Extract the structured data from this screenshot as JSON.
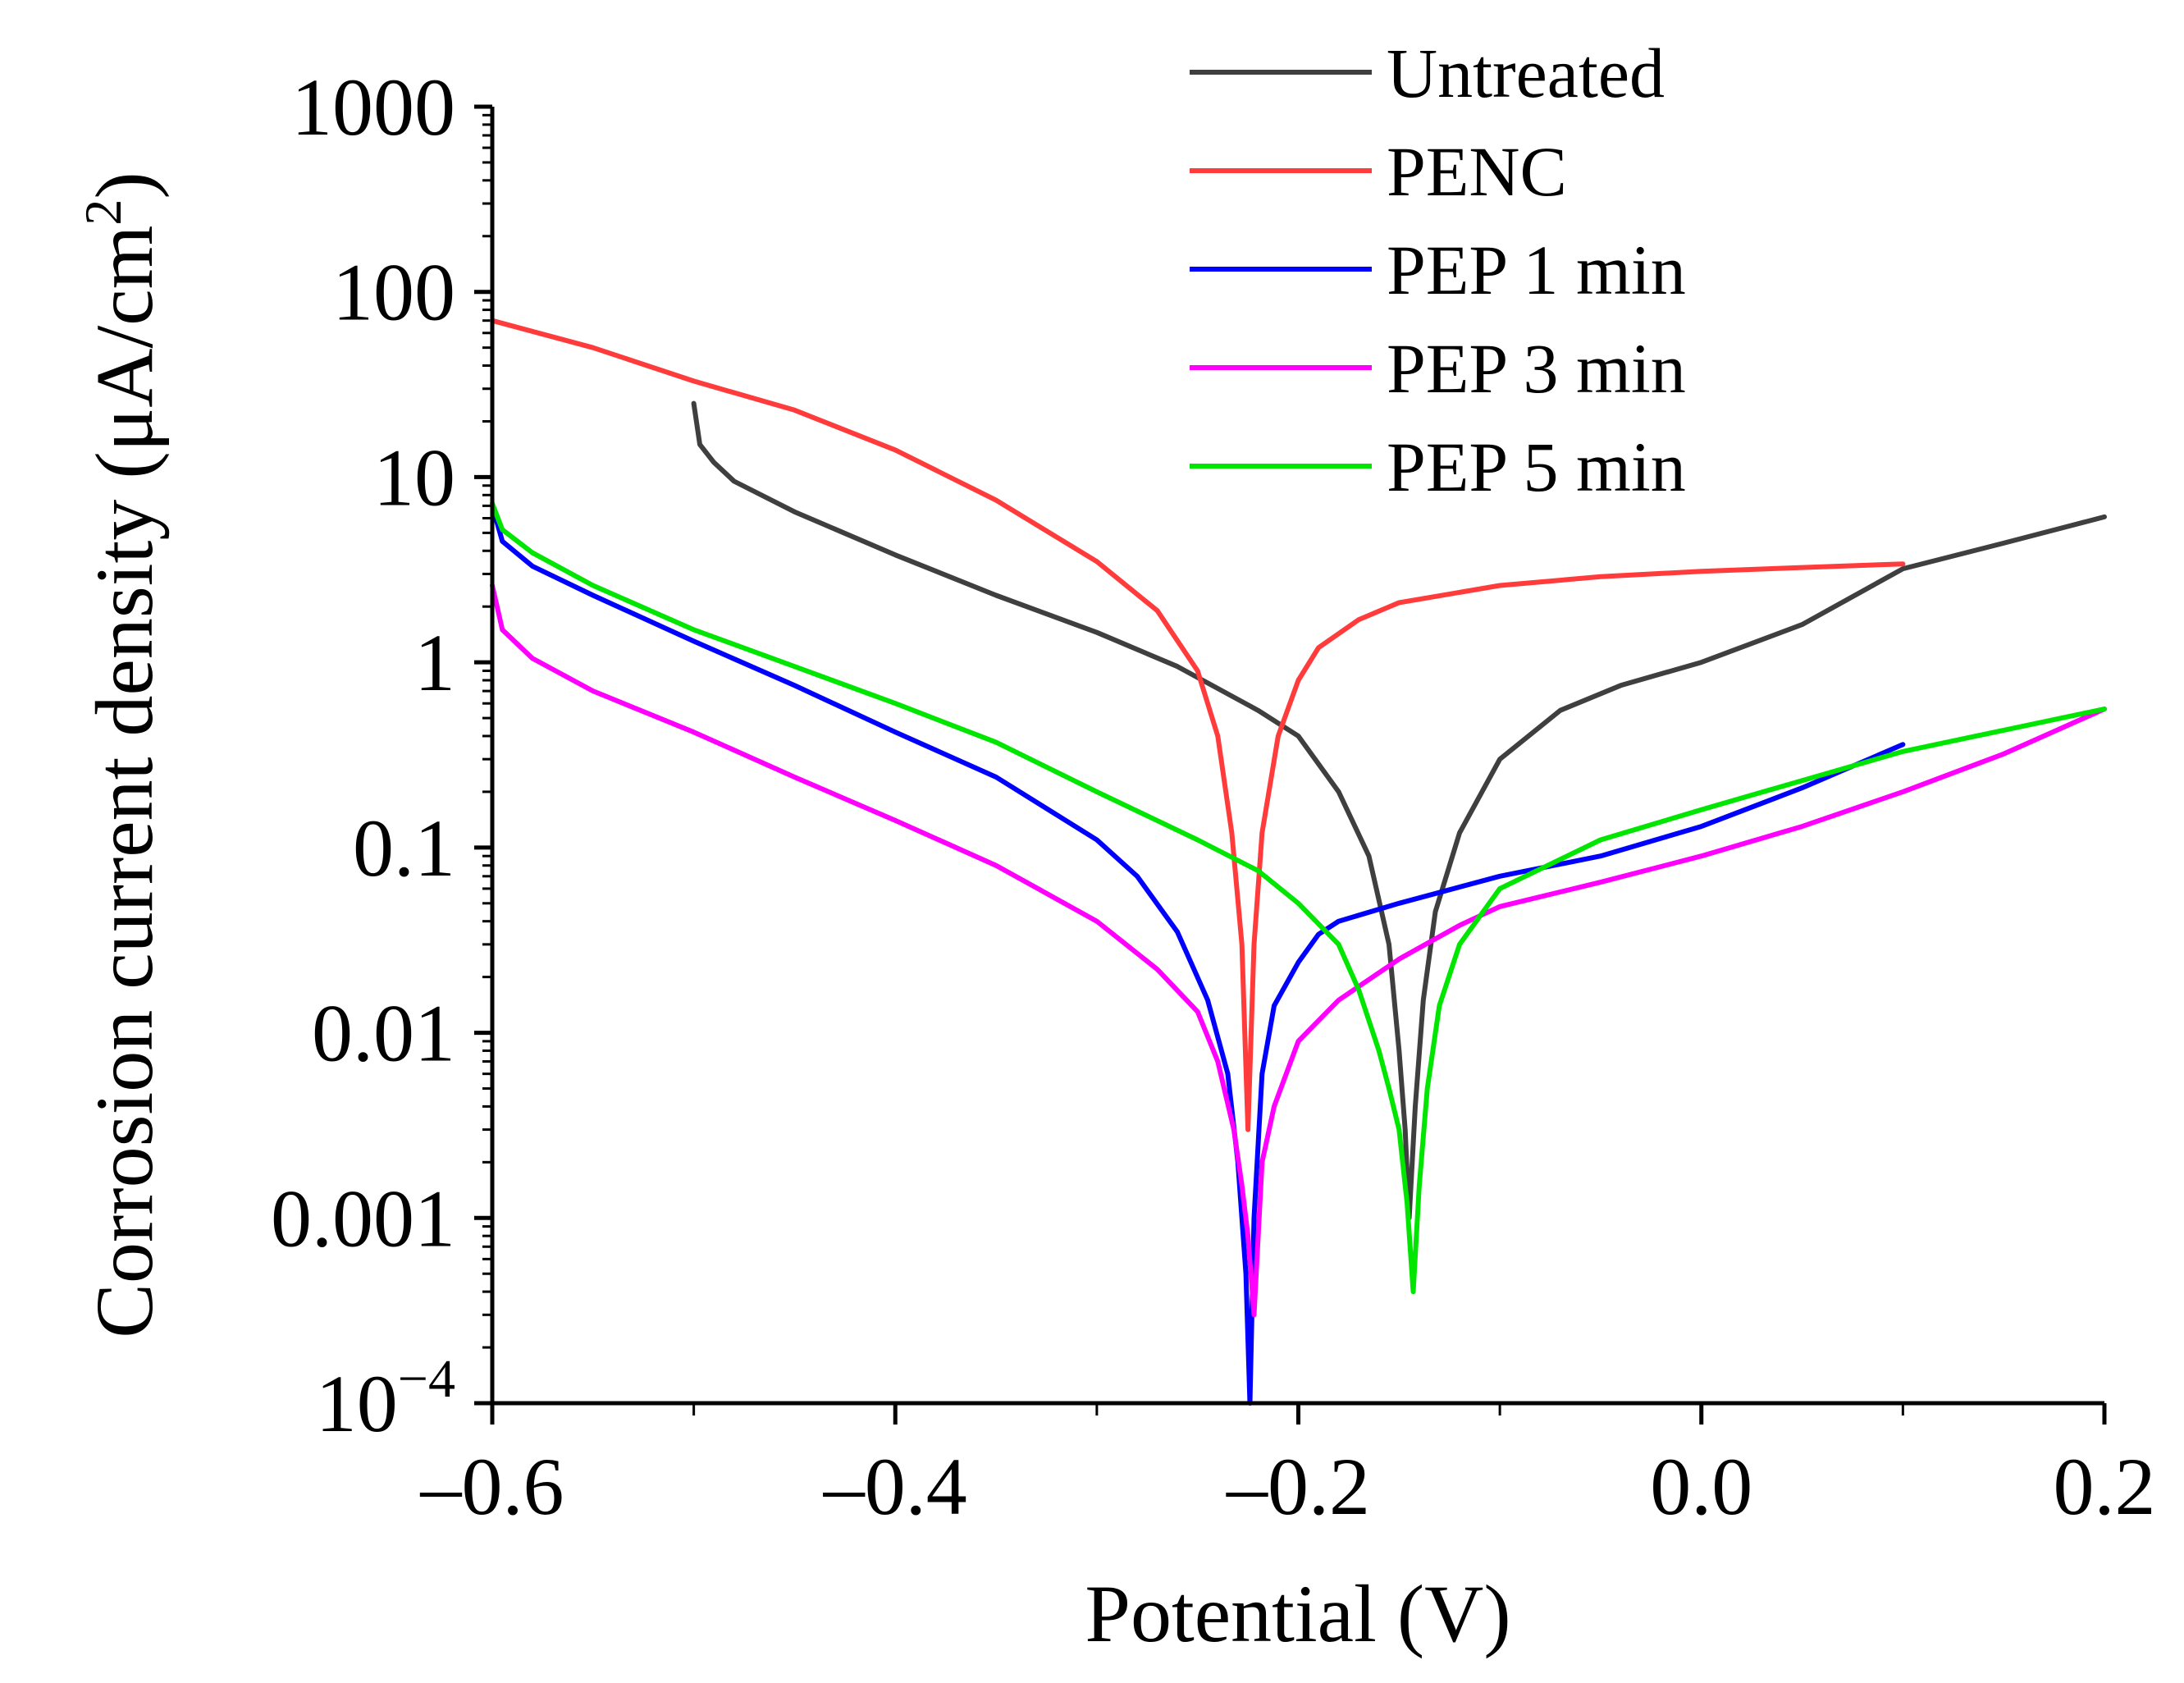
{
  "chart_data": {
    "type": "line",
    "title": "",
    "xlabel": "Potential (V)",
    "ylabel": "Corrosion current density (μA/cm²)",
    "ylabel_base": "Corrosion current density (μA/cm",
    "ylabel_sup": "2",
    "ylabel_end": ")",
    "xlim": [
      -0.6,
      0.2
    ],
    "ylim": [
      0.0001,
      1000
    ],
    "yscale": "log",
    "legend_position": "top-right",
    "grid": false,
    "x_ticks": [
      {
        "value": -0.6,
        "label": "–0.6"
      },
      {
        "value": -0.4,
        "label": "–0.4"
      },
      {
        "value": -0.2,
        "label": "–0.2"
      },
      {
        "value": 0.0,
        "label": "0.0"
      },
      {
        "value": 0.2,
        "label": "0.2"
      }
    ],
    "y_ticks": [
      {
        "value": 1000,
        "label": "1000"
      },
      {
        "value": 100,
        "label": "100"
      },
      {
        "value": 10,
        "label": "10"
      },
      {
        "value": 1,
        "label": "1"
      },
      {
        "value": 0.1,
        "label": "0.1"
      },
      {
        "value": 0.01,
        "label": "0.01"
      },
      {
        "value": 0.001,
        "label": "0.001"
      }
    ],
    "y_tick_bottom": {
      "value": 0.0001,
      "base": "10",
      "exp": "−4"
    },
    "series": [
      {
        "name": "Untreated",
        "color": "#3f3f3f",
        "x": [
          -0.5,
          -0.497,
          -0.49,
          -0.48,
          -0.45,
          -0.4,
          -0.35,
          -0.3,
          -0.26,
          -0.22,
          -0.2,
          -0.18,
          -0.165,
          -0.155,
          -0.15,
          -0.147,
          -0.145,
          -0.142,
          -0.138,
          -0.132,
          -0.12,
          -0.1,
          -0.07,
          -0.04,
          0.0,
          0.05,
          0.1,
          0.15,
          0.2
        ],
        "values": [
          25,
          15,
          12,
          9.5,
          6.5,
          3.8,
          2.3,
          1.45,
          0.95,
          0.55,
          0.4,
          0.2,
          0.09,
          0.03,
          0.008,
          0.003,
          0.001,
          0.004,
          0.015,
          0.045,
          0.12,
          0.3,
          0.55,
          0.75,
          1.0,
          1.6,
          3.2,
          4.4,
          6.1
        ]
      },
      {
        "name": "PENC",
        "color": "#ff3b3b",
        "x": [
          -0.6,
          -0.55,
          -0.5,
          -0.45,
          -0.4,
          -0.35,
          -0.3,
          -0.27,
          -0.25,
          -0.24,
          -0.233,
          -0.228,
          -0.225,
          -0.222,
          -0.218,
          -0.21,
          -0.2,
          -0.19,
          -0.17,
          -0.15,
          -0.1,
          -0.05,
          0.0,
          0.05,
          0.1
        ],
        "values": [
          70,
          50,
          33,
          23,
          14,
          7.5,
          3.5,
          1.9,
          0.9,
          0.4,
          0.12,
          0.03,
          0.003,
          0.03,
          0.12,
          0.4,
          0.8,
          1.2,
          1.7,
          2.1,
          2.6,
          2.9,
          3.1,
          3.25,
          3.4
        ]
      },
      {
        "name": "PEP 1 min",
        "color": "#0000ff",
        "x": [
          -0.6,
          -0.595,
          -0.58,
          -0.55,
          -0.5,
          -0.45,
          -0.4,
          -0.35,
          -0.3,
          -0.28,
          -0.26,
          -0.245,
          -0.235,
          -0.23,
          -0.226,
          -0.224,
          -0.222,
          -0.218,
          -0.212,
          -0.2,
          -0.19,
          -0.18,
          -0.15,
          -0.1,
          -0.05,
          0.0,
          0.05,
          0.1
        ],
        "values": [
          7,
          4.5,
          3.3,
          2.3,
          1.3,
          0.75,
          0.42,
          0.24,
          0.11,
          0.07,
          0.035,
          0.015,
          0.006,
          0.002,
          0.0005,
          0.0001,
          0.001,
          0.006,
          0.014,
          0.024,
          0.034,
          0.04,
          0.05,
          0.07,
          0.09,
          0.13,
          0.21,
          0.36
        ]
      },
      {
        "name": "PEP 3 min",
        "color": "#ff00ff",
        "x": [
          -0.6,
          -0.595,
          -0.58,
          -0.55,
          -0.5,
          -0.45,
          -0.4,
          -0.35,
          -0.3,
          -0.27,
          -0.25,
          -0.24,
          -0.232,
          -0.228,
          -0.225,
          -0.222,
          -0.218,
          -0.212,
          -0.2,
          -0.18,
          -0.15,
          -0.12,
          -0.1,
          -0.05,
          0.0,
          0.05,
          0.1,
          0.15,
          0.2
        ],
        "values": [
          2.6,
          1.5,
          1.05,
          0.7,
          0.42,
          0.24,
          0.14,
          0.08,
          0.04,
          0.022,
          0.013,
          0.007,
          0.003,
          0.0015,
          0.0008,
          0.0003,
          0.002,
          0.004,
          0.009,
          0.015,
          0.025,
          0.038,
          0.048,
          0.065,
          0.09,
          0.13,
          0.2,
          0.32,
          0.56
        ]
      },
      {
        "name": "PEP 5 min",
        "color": "#00e600",
        "x": [
          -0.6,
          -0.595,
          -0.58,
          -0.55,
          -0.5,
          -0.45,
          -0.4,
          -0.35,
          -0.3,
          -0.25,
          -0.22,
          -0.2,
          -0.18,
          -0.17,
          -0.16,
          -0.155,
          -0.15,
          -0.146,
          -0.143,
          -0.14,
          -0.136,
          -0.13,
          -0.12,
          -0.1,
          -0.05,
          0.0,
          0.05,
          0.1,
          0.15,
          0.2
        ],
        "values": [
          7.2,
          5.2,
          3.9,
          2.6,
          1.5,
          0.95,
          0.6,
          0.37,
          0.2,
          0.11,
          0.075,
          0.05,
          0.03,
          0.017,
          0.008,
          0.005,
          0.003,
          0.0012,
          0.0004,
          0.0015,
          0.005,
          0.014,
          0.03,
          0.06,
          0.11,
          0.16,
          0.23,
          0.33,
          0.43,
          0.56
        ]
      }
    ]
  }
}
